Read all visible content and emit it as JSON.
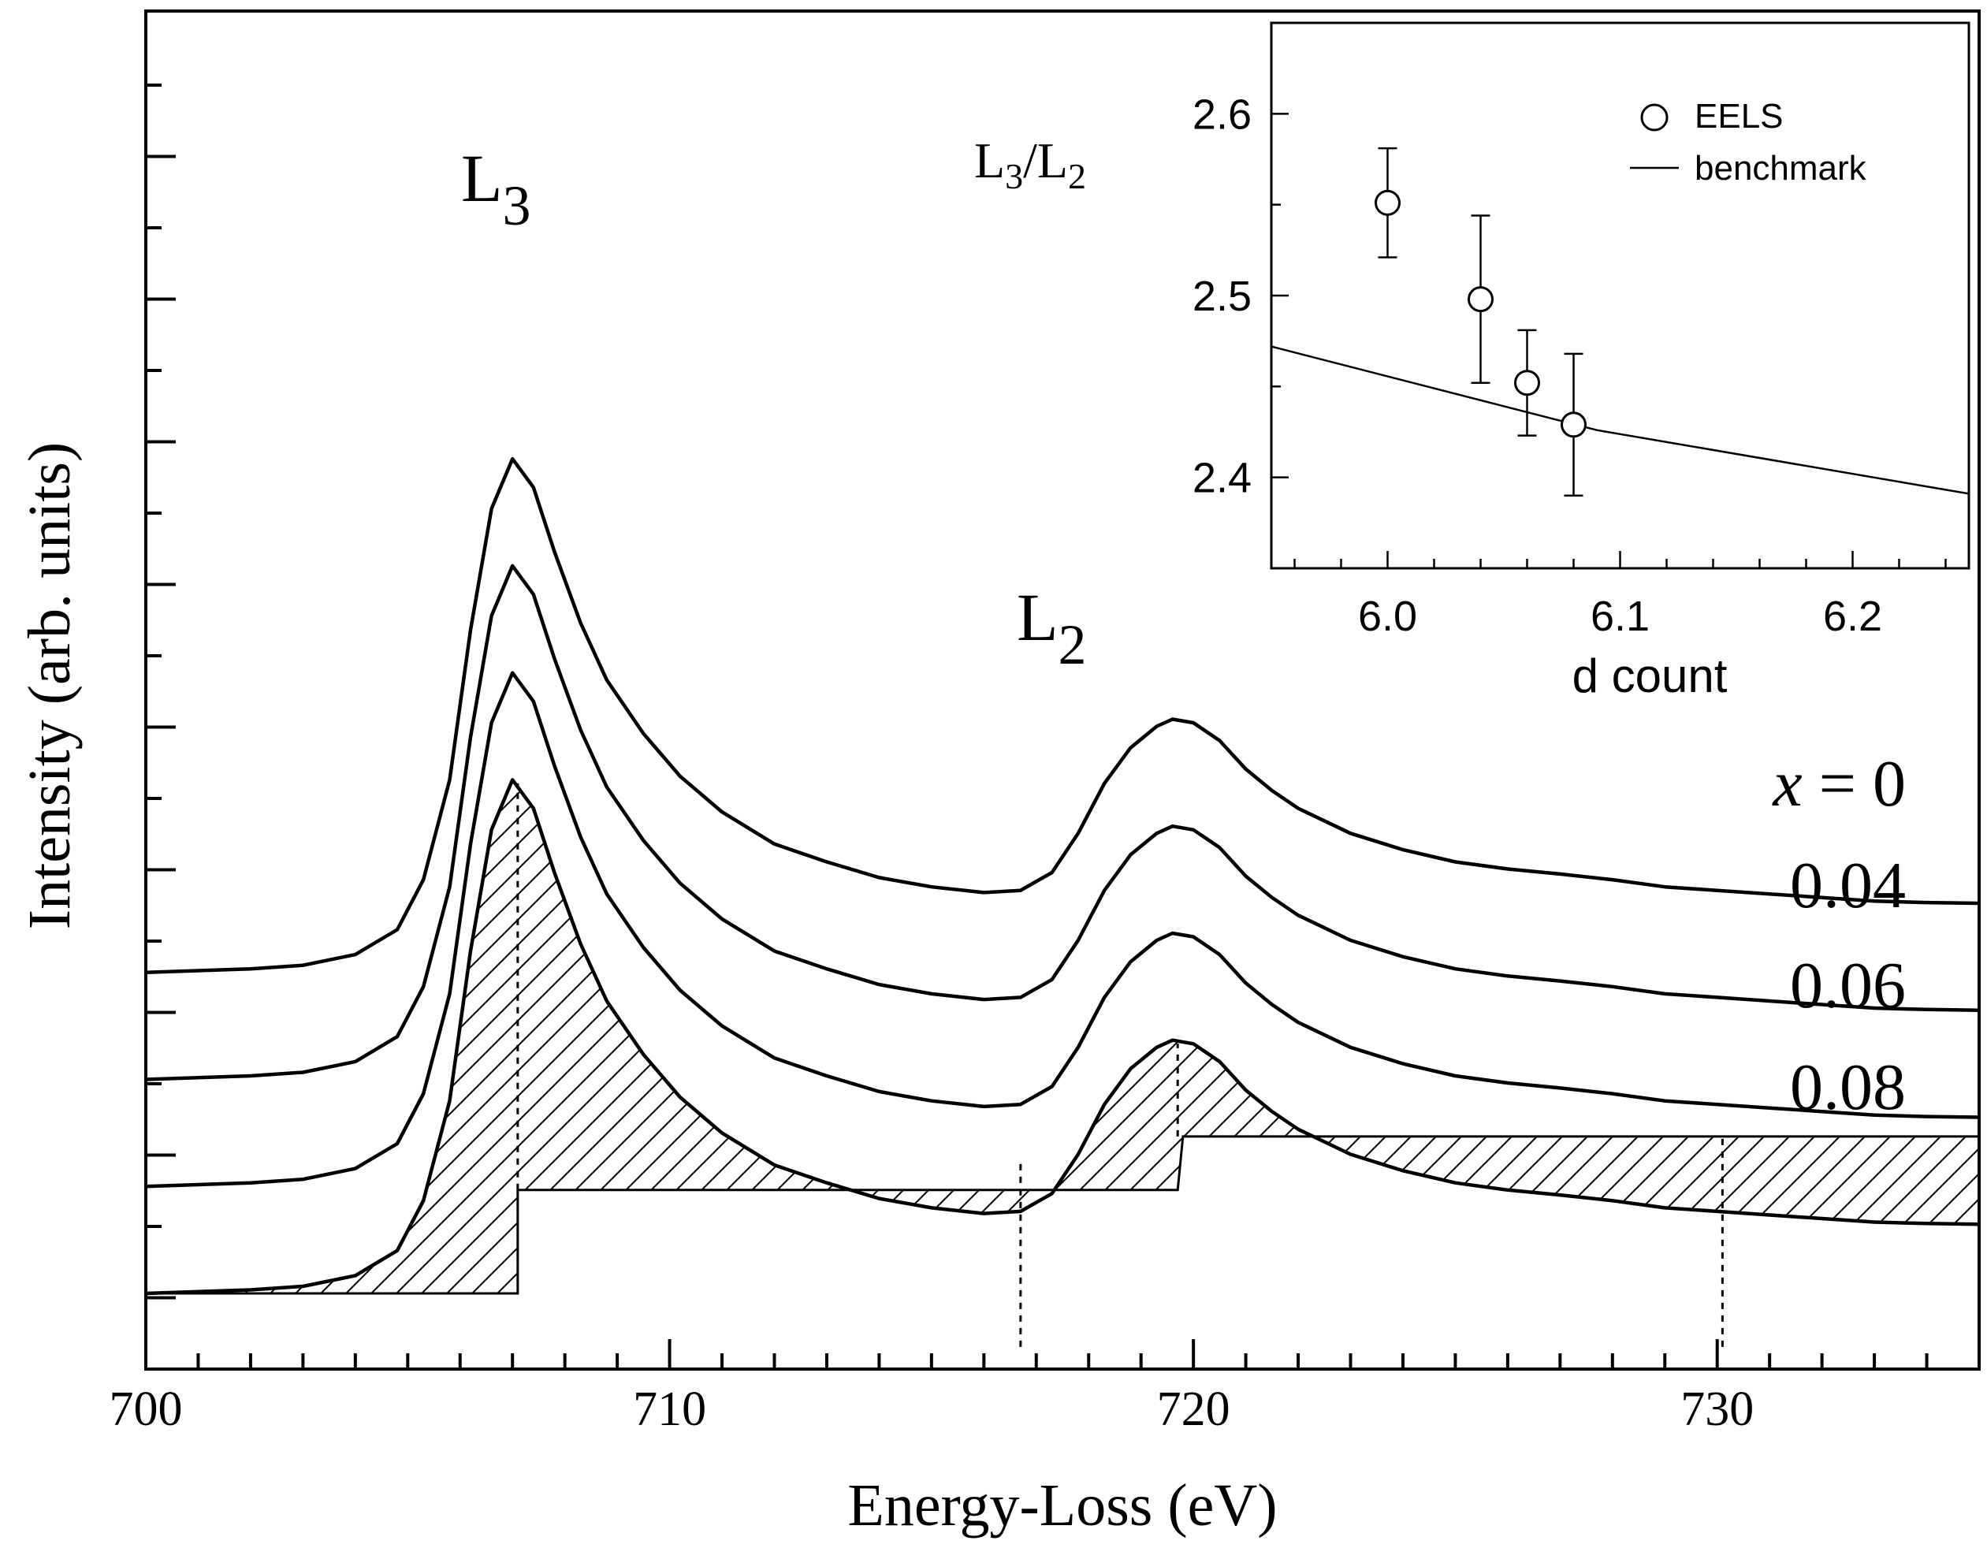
{
  "chart_data": [
    {
      "type": "line",
      "title": "",
      "xlabel": "Energy-Loss (eV)",
      "ylabel": "Intensity (arb. units)",
      "xlim": [
        700,
        735
      ],
      "ylim": [
        0,
        19
      ],
      "xticks": [
        700,
        710,
        720,
        730
      ],
      "y_tick_labels_shown": false,
      "grid": false,
      "peak_labels": [
        {
          "base": "L",
          "sub": "3",
          "x": 707.0
        },
        {
          "base": "L",
          "sub": "2",
          "x": 719.6
        }
      ],
      "series": [
        {
          "name": "x = 0",
          "label_prefix": "x",
          "label_value": "0",
          "offset": 4.5,
          "x": [
            700,
            702,
            703,
            704,
            704.8,
            705.3,
            705.8,
            706.2,
            706.6,
            707.0,
            707.4,
            707.8,
            708.3,
            708.8,
            709.5,
            710.2,
            711,
            712,
            713,
            714,
            715,
            716,
            716.7,
            717.3,
            717.8,
            718.3,
            718.8,
            719.3,
            719.6,
            720,
            720.5,
            721,
            721.5,
            722,
            723,
            724,
            725,
            726,
            727,
            728,
            729,
            730,
            731,
            732,
            733,
            734,
            735
          ],
          "y": [
            0.0,
            0.05,
            0.1,
            0.25,
            0.6,
            1.3,
            2.7,
            4.8,
            6.5,
            7.2,
            6.8,
            5.9,
            4.9,
            4.1,
            3.35,
            2.75,
            2.25,
            1.8,
            1.55,
            1.33,
            1.2,
            1.12,
            1.15,
            1.4,
            1.95,
            2.65,
            3.15,
            3.45,
            3.55,
            3.5,
            3.25,
            2.85,
            2.55,
            2.3,
            1.95,
            1.72,
            1.55,
            1.45,
            1.38,
            1.3,
            1.2,
            1.15,
            1.1,
            1.05,
            1.0,
            0.98,
            0.97
          ]
        },
        {
          "name": "0.04",
          "label_value": "0.04",
          "offset": 3.0,
          "x": [
            700,
            702,
            703,
            704,
            704.8,
            705.3,
            705.8,
            706.2,
            706.6,
            707.0,
            707.4,
            707.8,
            708.3,
            708.8,
            709.5,
            710.2,
            711,
            712,
            713,
            714,
            715,
            716,
            716.7,
            717.3,
            717.8,
            718.3,
            718.8,
            719.3,
            719.6,
            720,
            720.5,
            721,
            721.5,
            722,
            723,
            724,
            725,
            726,
            727,
            728,
            729,
            730,
            731,
            732,
            733,
            734,
            735
          ],
          "y": [
            0.0,
            0.05,
            0.1,
            0.25,
            0.6,
            1.3,
            2.7,
            4.8,
            6.5,
            7.2,
            6.8,
            5.9,
            4.9,
            4.1,
            3.35,
            2.75,
            2.25,
            1.8,
            1.55,
            1.33,
            1.2,
            1.12,
            1.15,
            1.4,
            1.95,
            2.65,
            3.15,
            3.45,
            3.55,
            3.5,
            3.25,
            2.85,
            2.55,
            2.3,
            1.95,
            1.72,
            1.55,
            1.45,
            1.38,
            1.3,
            1.2,
            1.15,
            1.1,
            1.05,
            1.0,
            0.98,
            0.97
          ]
        },
        {
          "name": "0.06",
          "label_value": "0.06",
          "offset": 1.5,
          "x": [
            700,
            702,
            703,
            704,
            704.8,
            705.3,
            705.8,
            706.2,
            706.6,
            707.0,
            707.4,
            707.8,
            708.3,
            708.8,
            709.5,
            710.2,
            711,
            712,
            713,
            714,
            715,
            716,
            716.7,
            717.3,
            717.8,
            718.3,
            718.8,
            719.3,
            719.6,
            720,
            720.5,
            721,
            721.5,
            722,
            723,
            724,
            725,
            726,
            727,
            728,
            729,
            730,
            731,
            732,
            733,
            734,
            735
          ],
          "y": [
            0.0,
            0.05,
            0.1,
            0.25,
            0.6,
            1.3,
            2.7,
            4.8,
            6.5,
            7.2,
            6.8,
            5.9,
            4.9,
            4.1,
            3.35,
            2.75,
            2.25,
            1.8,
            1.55,
            1.33,
            1.2,
            1.12,
            1.15,
            1.4,
            1.95,
            2.65,
            3.15,
            3.45,
            3.55,
            3.5,
            3.25,
            2.85,
            2.55,
            2.3,
            1.95,
            1.72,
            1.55,
            1.45,
            1.38,
            1.3,
            1.2,
            1.15,
            1.1,
            1.05,
            1.0,
            0.98,
            0.97
          ]
        },
        {
          "name": "0.08",
          "label_value": "0.08",
          "offset": 0.0,
          "shaded": true,
          "x": [
            700,
            702,
            703,
            704,
            704.8,
            705.3,
            705.8,
            706.2,
            706.6,
            707.0,
            707.4,
            707.8,
            708.3,
            708.8,
            709.5,
            710.2,
            711,
            712,
            713,
            714,
            715,
            716,
            716.7,
            717.3,
            717.8,
            718.3,
            718.8,
            719.3,
            719.6,
            720,
            720.5,
            721,
            721.5,
            722,
            723,
            724,
            725,
            726,
            727,
            728,
            729,
            730,
            731,
            732,
            733,
            734,
            735
          ],
          "y": [
            0.0,
            0.05,
            0.1,
            0.25,
            0.6,
            1.3,
            2.7,
            4.8,
            6.5,
            7.2,
            6.8,
            5.9,
            4.9,
            4.1,
            3.35,
            2.75,
            2.25,
            1.8,
            1.55,
            1.33,
            1.2,
            1.12,
            1.15,
            1.4,
            1.95,
            2.65,
            3.15,
            3.45,
            3.55,
            3.5,
            3.25,
            2.85,
            2.55,
            2.3,
            1.95,
            1.72,
            1.55,
            1.45,
            1.38,
            1.3,
            1.2,
            1.15,
            1.1,
            1.05,
            1.0,
            0.98,
            0.97
          ]
        }
      ],
      "background_step": {
        "x": [
          700,
          707.1,
          707.1,
          719.7,
          719.8,
          735
        ],
        "y": [
          0.0,
          0.0,
          1.45,
          1.45,
          2.2,
          2.2
        ]
      },
      "dotted_markers": [
        {
          "x": 707.1,
          "y_from": 1.45,
          "y_to": 7.15
        },
        {
          "x": 719.7,
          "y_from": 2.2,
          "y_to": 3.5
        },
        {
          "x": 716.7,
          "y_from": -0.75,
          "y_to": 1.9
        },
        {
          "x": 730.1,
          "y_from": -0.75,
          "y_to": 2.2
        }
      ]
    },
    {
      "type": "scatter",
      "title": "",
      "xlabel": "d count",
      "ylabel_base": "L",
      "ylabel_sub1": "3",
      "ylabel_sep": "/L",
      "ylabel_sub2": "2",
      "xlim": [
        5.95,
        6.25
      ],
      "ylim": [
        2.35,
        2.65
      ],
      "xticks": [
        "6.0",
        "6.1",
        "6.2"
      ],
      "yticks": [
        "2.4",
        "2.5",
        "2.6"
      ],
      "legend_position": "top-right",
      "series": [
        {
          "name": "EELS",
          "marker": "open-circle",
          "x": [
            6.0,
            6.04,
            6.06,
            6.08
          ],
          "y": [
            2.551,
            2.498,
            2.452,
            2.429
          ],
          "yerr": [
            0.03,
            0.046,
            0.029,
            0.039
          ]
        },
        {
          "name": "benchmark",
          "marker": "line",
          "x": [
            5.95,
            6.09,
            6.25
          ],
          "y": [
            2.472,
            2.426,
            2.391
          ]
        }
      ]
    }
  ]
}
